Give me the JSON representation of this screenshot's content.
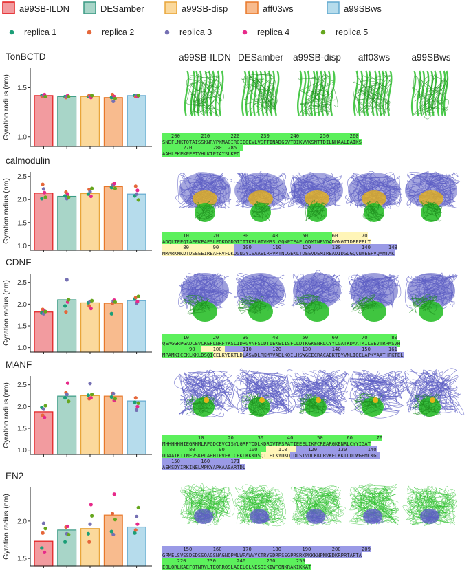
{
  "legend": {
    "models": [
      {
        "name": "a99SB-ILDN",
        "fill": "#f29b9f",
        "stroke": "#e31a1c"
      },
      {
        "name": "DESamber",
        "fill": "#a8d5c8",
        "stroke": "#3a9a84"
      },
      {
        "name": "a99SB-disp",
        "fill": "#fbd99c",
        "stroke": "#e8a53a"
      },
      {
        "name": "aff03ws",
        "fill": "#f8bb8e",
        "stroke": "#e8782a"
      },
      {
        "name": "a99SBws",
        "fill": "#b6dcec",
        "stroke": "#62a9cf"
      }
    ],
    "replicas": [
      {
        "name": "replica 1",
        "color": "#1b9e77"
      },
      {
        "name": "replica 2",
        "color": "#e5673a"
      },
      {
        "name": "replica 3",
        "color": "#7570b3"
      },
      {
        "name": "replica 4",
        "color": "#e7298a"
      },
      {
        "name": "replica 5",
        "color": "#66a61e"
      }
    ]
  },
  "column_headers": [
    "a99SB-ILDN",
    "DESamber",
    "a99SB-disp",
    "aff03ws",
    "a99SBws"
  ],
  "colors": {
    "green": "#5cf05c",
    "yellow": "#fff5b8",
    "purple": "#9a9ae6",
    "mol_green": "#2bbf2b",
    "mol_purple": "#5d5fc4",
    "mol_yellow": "#e5b11a"
  },
  "chart_data": [
    {
      "type": "bar",
      "title": "TonBCTD",
      "ylabel": "Gyration radius (nm)",
      "ylim": [
        0.9,
        1.7
      ],
      "yticks": [
        "1.0",
        "1.5"
      ],
      "categories": [
        "a99SB-ILDN",
        "DESamber",
        "a99SB-disp",
        "aff03ws",
        "a99SBws"
      ],
      "values": [
        1.42,
        1.41,
        1.41,
        1.4,
        1.42
      ],
      "replicas": [
        [
          1.42,
          1.41,
          1.42,
          1.43,
          1.41
        ],
        [
          1.41,
          1.4,
          1.41,
          1.42,
          1.41
        ],
        [
          1.41,
          1.42,
          1.41,
          1.4,
          1.42
        ],
        [
          1.4,
          1.43,
          1.36,
          1.41,
          1.39
        ],
        [
          1.42,
          1.41,
          1.42,
          1.41,
          1.42
        ]
      ]
    },
    {
      "type": "bar",
      "title": "calmodulin",
      "ylabel": "Gyration radius (nm)",
      "ylim": [
        0.9,
        2.6
      ],
      "yticks": [
        "1.0",
        "1.5",
        "2.0",
        "2.5"
      ],
      "categories": [
        "a99SB-ILDN",
        "DESamber",
        "a99SB-disp",
        "aff03ws",
        "a99SBws"
      ],
      "values": [
        2.14,
        2.07,
        2.13,
        2.28,
        2.12
      ],
      "replicas": [
        [
          2.02,
          2.33,
          2.23,
          2.15,
          2.05
        ],
        [
          2.08,
          2.16,
          2.02,
          2.12,
          2.05
        ],
        [
          2.12,
          2.22,
          2.17,
          2.07,
          2.24
        ],
        [
          2.26,
          2.32,
          2.32,
          2.35,
          2.24
        ],
        [
          2.08,
          2.29,
          2.12,
          2.2,
          1.99
        ]
      ]
    },
    {
      "type": "bar",
      "title": "CDNF",
      "ylabel": "Gyration radius (nm)",
      "ylim": [
        0.9,
        2.7
      ],
      "yticks": [
        "1.0",
        "1.5",
        "2.0",
        "2.5"
      ],
      "categories": [
        "a99SB-ILDN",
        "DESamber",
        "a99SB-disp",
        "aff03ws",
        "a99SBws"
      ],
      "values": [
        1.82,
        2.1,
        2.03,
        2.02,
        2.08
      ],
      "replicas": [
        [
          1.8,
          1.88,
          1.78,
          1.84,
          1.83
        ],
        [
          1.96,
          1.82,
          2.56,
          2.05,
          2.1
        ],
        [
          2.03,
          1.96,
          2.06,
          1.9,
          2.08
        ],
        [
          1.78,
          2.02,
          2.07,
          2.09,
          2.05
        ],
        [
          2.12,
          2.15,
          2.02,
          2.06,
          2.18
        ]
      ]
    },
    {
      "type": "bar",
      "title": "MANF",
      "ylabel": "Gyration radius (nm)",
      "ylim": [
        0.9,
        2.7
      ],
      "yticks": [
        "1.0",
        "1.5",
        "2.0",
        "2.5"
      ],
      "categories": [
        "a99SB-ILDN",
        "DESamber",
        "a99SB-disp",
        "aff03ws",
        "a99SBws"
      ],
      "values": [
        1.88,
        2.24,
        2.25,
        2.24,
        2.13
      ],
      "replicas": [
        [
          1.98,
          1.8,
          1.94,
          1.75,
          2.02
        ],
        [
          2.2,
          2.32,
          2.28,
          2.54,
          2.12
        ],
        [
          2.26,
          2.18,
          2.53,
          2.2,
          2.28
        ],
        [
          2.22,
          2.3,
          2.3,
          2.14,
          2.18
        ],
        [
          2.1,
          2.2,
          1.92,
          2.0,
          2.08
        ]
      ]
    },
    {
      "type": "bar",
      "title": "EN2",
      "ylabel": "Gyration radius (nm)",
      "ylim": [
        1.4,
        2.45
      ],
      "yticks": [
        "1.5",
        "2.0"
      ],
      "categories": [
        "a99SB-ILDN",
        "DESamber",
        "a99SB-disp",
        "aff03ws",
        "a99SBws"
      ],
      "values": [
        1.73,
        1.88,
        1.9,
        2.08,
        1.92
      ],
      "replicas": [
        [
          1.64,
          1.84,
          1.97,
          1.58,
          1.9
        ],
        [
          1.72,
          1.92,
          1.83,
          1.93,
          1.82
        ],
        [
          1.83,
          1.72,
          1.96,
          2.22,
          2.07
        ],
        [
          1.86,
          2.1,
          1.82,
          2.36,
          2.02
        ],
        [
          1.84,
          1.88,
          2.06,
          1.96,
          2.18
        ]
      ]
    }
  ],
  "sequences": [
    {
      "name": "TonBCTD",
      "lines": [
        [
          {
            "text": "   200       210       220       230       240       250       260",
            "bg": "green"
          }
        ],
        [
          {
            "text": "SNEFLMKTQTAISSKNRYPKMAQIRGIEGEVLVSFTINADGSVTDIKVVKSNTTDILNHAALEAIKS",
            "bg": "green"
          }
        ],
        [
          {
            "text": "       270       280  285  ",
            "bg": "green"
          }
        ],
        [
          {
            "text": "AAHLFKPKPEETVHLKIPIAYSLKED",
            "bg": "green"
          }
        ]
      ]
    },
    {
      "name": "calmodulin",
      "lines": [
        [
          {
            "text": "       10        20        30        40        50        ",
            "bg": "green"
          },
          {
            "text": "60        70",
            "bg": "yellow"
          }
        ],
        [
          {
            "text": "ADQLTEEQIAEFKEAFSLFDKDGDGTITTKELGTVMRSLGQNPTEAELQDMINEVDA",
            "bg": "green"
          },
          {
            "text": "DGNGTIDFPEFLT",
            "bg": "yellow"
          }
        ],
        [
          {
            "text": "       80        90     ",
            "bg": "yellow"
          },
          {
            "text": "   100       110       120       130       140      148",
            "bg": "purple"
          }
        ],
        [
          {
            "text": "MMARKMKDTDSEEEIREAFRVFDK",
            "bg": "yellow"
          },
          {
            "text": "DGNGYISAAELRHVMTNLGEKLTDEEVDEMIREADIDGDGQVNYEEFVQMMTAK",
            "bg": "purple"
          }
        ]
      ]
    },
    {
      "name": "CDNF",
      "lines": [
        [
          {
            "text": "       10        20        30        40        50        60        70        80",
            "bg": "green"
          }
        ],
        [
          {
            "text": "QEAGGRPGADCEVCKEFLNRFYKSLIDRGVNFSLDTIEKELISFCLDTKGKENRLCYYLGATKDAATKILSEVTRPMSVH",
            "bg": "green"
          }
        ],
        [
          {
            "text": "         90  ",
            "bg": "green"
          },
          {
            "text": "    100 ",
            "bg": "yellow"
          },
          {
            "text": "      110       120       130       140       150      161",
            "bg": "purple"
          }
        ],
        [
          {
            "text": "MPAMKICEKLKKLDSQI",
            "bg": "green"
          },
          {
            "text": "CELKYEKTLD",
            "bg": "yellow"
          },
          {
            "text": "LASVDLRKMRVAELKQILHSWGEECRACAEKTDYVNLIQELAPKYAATHPKTEL",
            "bg": "purple"
          }
        ]
      ]
    },
    {
      "name": "MANF",
      "lines": [
        [
          {
            "text": "            10        20        30        40        50        60        70",
            "bg": "green"
          }
        ],
        [
          {
            "text": "MHHHHHHIEGRHMLRPGDCEVCISYLGRFYQDLKDRDVTFSPATIEEELIKFCREARGKENRLCYYIGAT",
            "bg": "green"
          }
        ],
        [
          {
            "text": "         80        90        100   ",
            "bg": "green"
          },
          {
            "text": "    110   ",
            "bg": "yellow"
          },
          {
            "text": "    120       130       140",
            "bg": "purple"
          }
        ],
        [
          {
            "text": "DDAATKIINEVSKPLAHHIPVEKICEKLKKKDS",
            "bg": "green"
          },
          {
            "text": "QICELKYDKQ",
            "bg": "yellow"
          },
          {
            "text": "IDLSTVDLKKLRVKELKKILDDWGEMCKGC",
            "bg": "purple"
          }
        ],
        [
          {
            "text": "   150       160       171",
            "bg": "purple"
          }
        ],
        [
          {
            "text": "AEKSDYIRKINELMPKYAPKAASARTDL",
            "bg": "purple"
          }
        ]
      ]
    },
    {
      "name": "EN2",
      "lines": [
        [
          {
            "text": "       150       160       170       180       190       200       209",
            "bg": "purple"
          }
        ],
        [
          {
            "text": "GPMELSVSSDSDSSQAGSNAGNQPMLWPAWVYCTRYSDRPSSGPRSRKPKKKNPNKEDKRPRTAFTA",
            "bg": "purple"
          }
        ],
        [
          {
            "text": "     220       230       240       250       259",
            "bg": "green"
          }
        ],
        [
          {
            "text": "EQLQRLKAEFQTNRYLTEQRRQSLAQELGLNESQIKIWFQNKRAKIKKAT",
            "bg": "green"
          }
        ]
      ]
    }
  ]
}
